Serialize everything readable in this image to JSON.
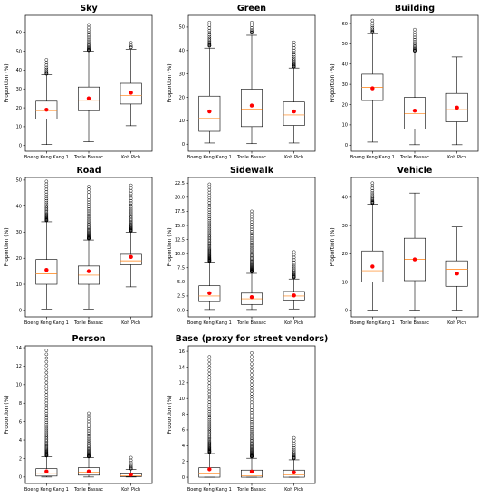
{
  "figure": {
    "charts_layout": "3x3 grid",
    "colors": {
      "box": "#000000",
      "median": "#ff7f0e",
      "mean": "#ff0000",
      "outlier": "#000000"
    }
  },
  "chart_data": [
    {
      "type": "boxplot",
      "title": "Sky",
      "ylabel": "Proportion (%)",
      "ylim": [
        -3,
        69
      ],
      "yticks": [
        0,
        10,
        20,
        30,
        40,
        50,
        60
      ],
      "categories": [
        "Boeng Keng Kang 1",
        "Tonle Bassac",
        "Koh Pich"
      ],
      "boxes": [
        {
          "whislo": 0.5,
          "q1": 14,
          "med": 18.5,
          "q3": 23.5,
          "whishi": 37.5,
          "mean": 19,
          "fliers_range": [
            38,
            45.5
          ]
        },
        {
          "whislo": 2,
          "q1": 18.5,
          "med": 24,
          "q3": 31,
          "whishi": 50,
          "mean": 25,
          "fliers_range": [
            50.5,
            64
          ]
        },
        {
          "whislo": 10.5,
          "q1": 22,
          "med": 26.5,
          "q3": 33,
          "whishi": 51,
          "mean": 28,
          "fliers_range": [
            52,
            54.5
          ]
        }
      ]
    },
    {
      "type": "boxplot",
      "title": "Green",
      "ylabel": "Proportion (%)",
      "ylim": [
        -3,
        55
      ],
      "yticks": [
        0,
        10,
        20,
        30,
        40,
        50
      ],
      "categories": [
        "Boeng Keng Kang 1",
        "Tonle Bassac",
        "Koh Pich"
      ],
      "boxes": [
        {
          "whislo": 0.5,
          "q1": 5.5,
          "med": 11,
          "q3": 20.5,
          "whishi": 41,
          "mean": 14,
          "fliers_range": [
            42,
            52
          ]
        },
        {
          "whislo": 0.2,
          "q1": 7.5,
          "med": 15,
          "q3": 23.5,
          "whishi": 46.5,
          "mean": 16.5,
          "fliers_range": [
            47.5,
            52
          ]
        },
        {
          "whislo": 0.5,
          "q1": 8,
          "med": 12.5,
          "q3": 18,
          "whishi": 32.5,
          "mean": 14,
          "fliers_range": [
            33,
            43.5
          ]
        }
      ]
    },
    {
      "type": "boxplot",
      "title": "Building",
      "ylabel": "Proportion (%)",
      "ylim": [
        -3,
        64
      ],
      "yticks": [
        0,
        10,
        20,
        30,
        40,
        50,
        60
      ],
      "categories": [
        "Boeng Keng Kang 1",
        "Tonle Bassac",
        "Koh Pich"
      ],
      "boxes": [
        {
          "whislo": 1.5,
          "q1": 22,
          "med": 28.5,
          "q3": 35,
          "whishi": 55,
          "mean": 28,
          "fliers_range": [
            55.5,
            61.5
          ]
        },
        {
          "whislo": 0.2,
          "q1": 8,
          "med": 15.5,
          "q3": 23.5,
          "whishi": 45.5,
          "mean": 17,
          "fliers_range": [
            46.5,
            57
          ]
        },
        {
          "whislo": 0.2,
          "q1": 11.5,
          "med": 17.5,
          "q3": 25.5,
          "whishi": 43.5,
          "mean": 18.5,
          "fliers_range": []
        }
      ]
    },
    {
      "type": "boxplot",
      "title": "Road",
      "ylabel": "Proportion (%)",
      "ylim": [
        -2.5,
        51
      ],
      "yticks": [
        0,
        10,
        20,
        30,
        40,
        50
      ],
      "categories": [
        "Boeng Keng Kang 1",
        "Tonle Bassac",
        "Koh Pich"
      ],
      "boxes": [
        {
          "whislo": 0.5,
          "q1": 10,
          "med": 14,
          "q3": 19.5,
          "whishi": 34,
          "mean": 15.5,
          "fliers_range": [
            34.5,
            49.5
          ]
        },
        {
          "whislo": 0.5,
          "q1": 10,
          "med": 13.5,
          "q3": 17,
          "whishi": 27,
          "mean": 15,
          "fliers_range": [
            27.5,
            47.5
          ]
        },
        {
          "whislo": 9,
          "q1": 17.5,
          "med": 19,
          "q3": 21.5,
          "whishi": 30,
          "mean": 20.5,
          "fliers_range": [
            30.5,
            48
          ]
        }
      ]
    },
    {
      "type": "boxplot",
      "title": "Sidewalk",
      "ylabel": "Proportion (%)",
      "ylim": [
        -1.2,
        23.5
      ],
      "yticks": [
        0.0,
        2.5,
        5.0,
        7.5,
        10.0,
        12.5,
        15.0,
        17.5,
        20.0,
        22.5
      ],
      "categories": [
        "Boeng Keng Kang 1",
        "Tonle Bassac",
        "Koh Pich"
      ],
      "boxes": [
        {
          "whislo": 0.1,
          "q1": 1.5,
          "med": 2.5,
          "q3": 4.3,
          "whishi": 8.5,
          "mean": 3,
          "fliers_range": [
            8.7,
            22.3
          ]
        },
        {
          "whislo": 0.1,
          "q1": 1,
          "med": 2,
          "q3": 3,
          "whishi": 6.5,
          "mean": 2.3,
          "fliers_range": [
            6.8,
            17.5
          ]
        },
        {
          "whislo": 0.2,
          "q1": 1.8,
          "med": 2.5,
          "q3": 3.3,
          "whishi": 5.5,
          "mean": 2.6,
          "fliers_range": [
            5.8,
            10.3
          ]
        }
      ]
    },
    {
      "type": "boxplot",
      "title": "Vehicle",
      "ylabel": "Proportion (%)",
      "ylim": [
        -2.3,
        47
      ],
      "yticks": [
        0,
        10,
        20,
        30,
        40
      ],
      "categories": [
        "Boeng Keng Kang 1",
        "Tonle Bassac",
        "Koh Pich"
      ],
      "boxes": [
        {
          "whislo": 0.1,
          "q1": 10,
          "med": 14,
          "q3": 21,
          "whishi": 37.5,
          "mean": 15.5,
          "fliers_range": [
            38,
            45
          ]
        },
        {
          "whislo": 0.1,
          "q1": 10.5,
          "med": 18,
          "q3": 25.5,
          "whishi": 41.5,
          "mean": 18,
          "fliers_range": []
        },
        {
          "whislo": 0.1,
          "q1": 8.5,
          "med": 14.5,
          "q3": 17.5,
          "whishi": 29.5,
          "mean": 13,
          "fliers_range": []
        }
      ]
    },
    {
      "type": "boxplot",
      "title": "Person",
      "ylabel": "Proportion (%)",
      "ylim": [
        -0.7,
        14.2
      ],
      "yticks": [
        0,
        2,
        4,
        6,
        8,
        10,
        12,
        14
      ],
      "categories": [
        "Boeng Keng Kang 1",
        "Tonle Bassac",
        "Koh Pich"
      ],
      "boxes": [
        {
          "whislo": 0,
          "q1": 0.1,
          "med": 0.4,
          "q3": 0.9,
          "whishi": 2.2,
          "mean": 0.6,
          "fliers_range": [
            2.3,
            13.7
          ]
        },
        {
          "whislo": 0,
          "q1": 0.2,
          "med": 0.5,
          "q3": 1,
          "whishi": 2.1,
          "mean": 0.6,
          "fliers_range": [
            2.2,
            6.9
          ]
        },
        {
          "whislo": 0,
          "q1": 0.05,
          "med": 0.15,
          "q3": 0.35,
          "whishi": 0.8,
          "mean": 0.25,
          "fliers_range": [
            0.9,
            2.1
          ]
        }
      ]
    },
    {
      "type": "boxplot",
      "title": "Base (proxy for street vendors)",
      "ylabel": "Proportion (%)",
      "ylim": [
        -0.8,
        16.7
      ],
      "yticks": [
        0,
        2,
        4,
        6,
        8,
        10,
        12,
        14,
        16
      ],
      "categories": [
        "Boeng Keng Kang 1",
        "Tonle Bassac",
        "Koh Pich"
      ],
      "boxes": [
        {
          "whislo": 0,
          "q1": 0,
          "med": 0.4,
          "q3": 1.2,
          "whishi": 3,
          "mean": 1,
          "fliers_range": [
            3.2,
            15.3
          ]
        },
        {
          "whislo": 0,
          "q1": 0,
          "med": 0.2,
          "q3": 0.9,
          "whishi": 2.4,
          "mean": 0.7,
          "fliers_range": [
            2.6,
            15.8
          ]
        },
        {
          "whislo": 0,
          "q1": 0,
          "med": 0.3,
          "q3": 0.9,
          "whishi": 2.2,
          "mean": 0.6,
          "fliers_range": [
            2.4,
            5
          ]
        }
      ]
    }
  ]
}
